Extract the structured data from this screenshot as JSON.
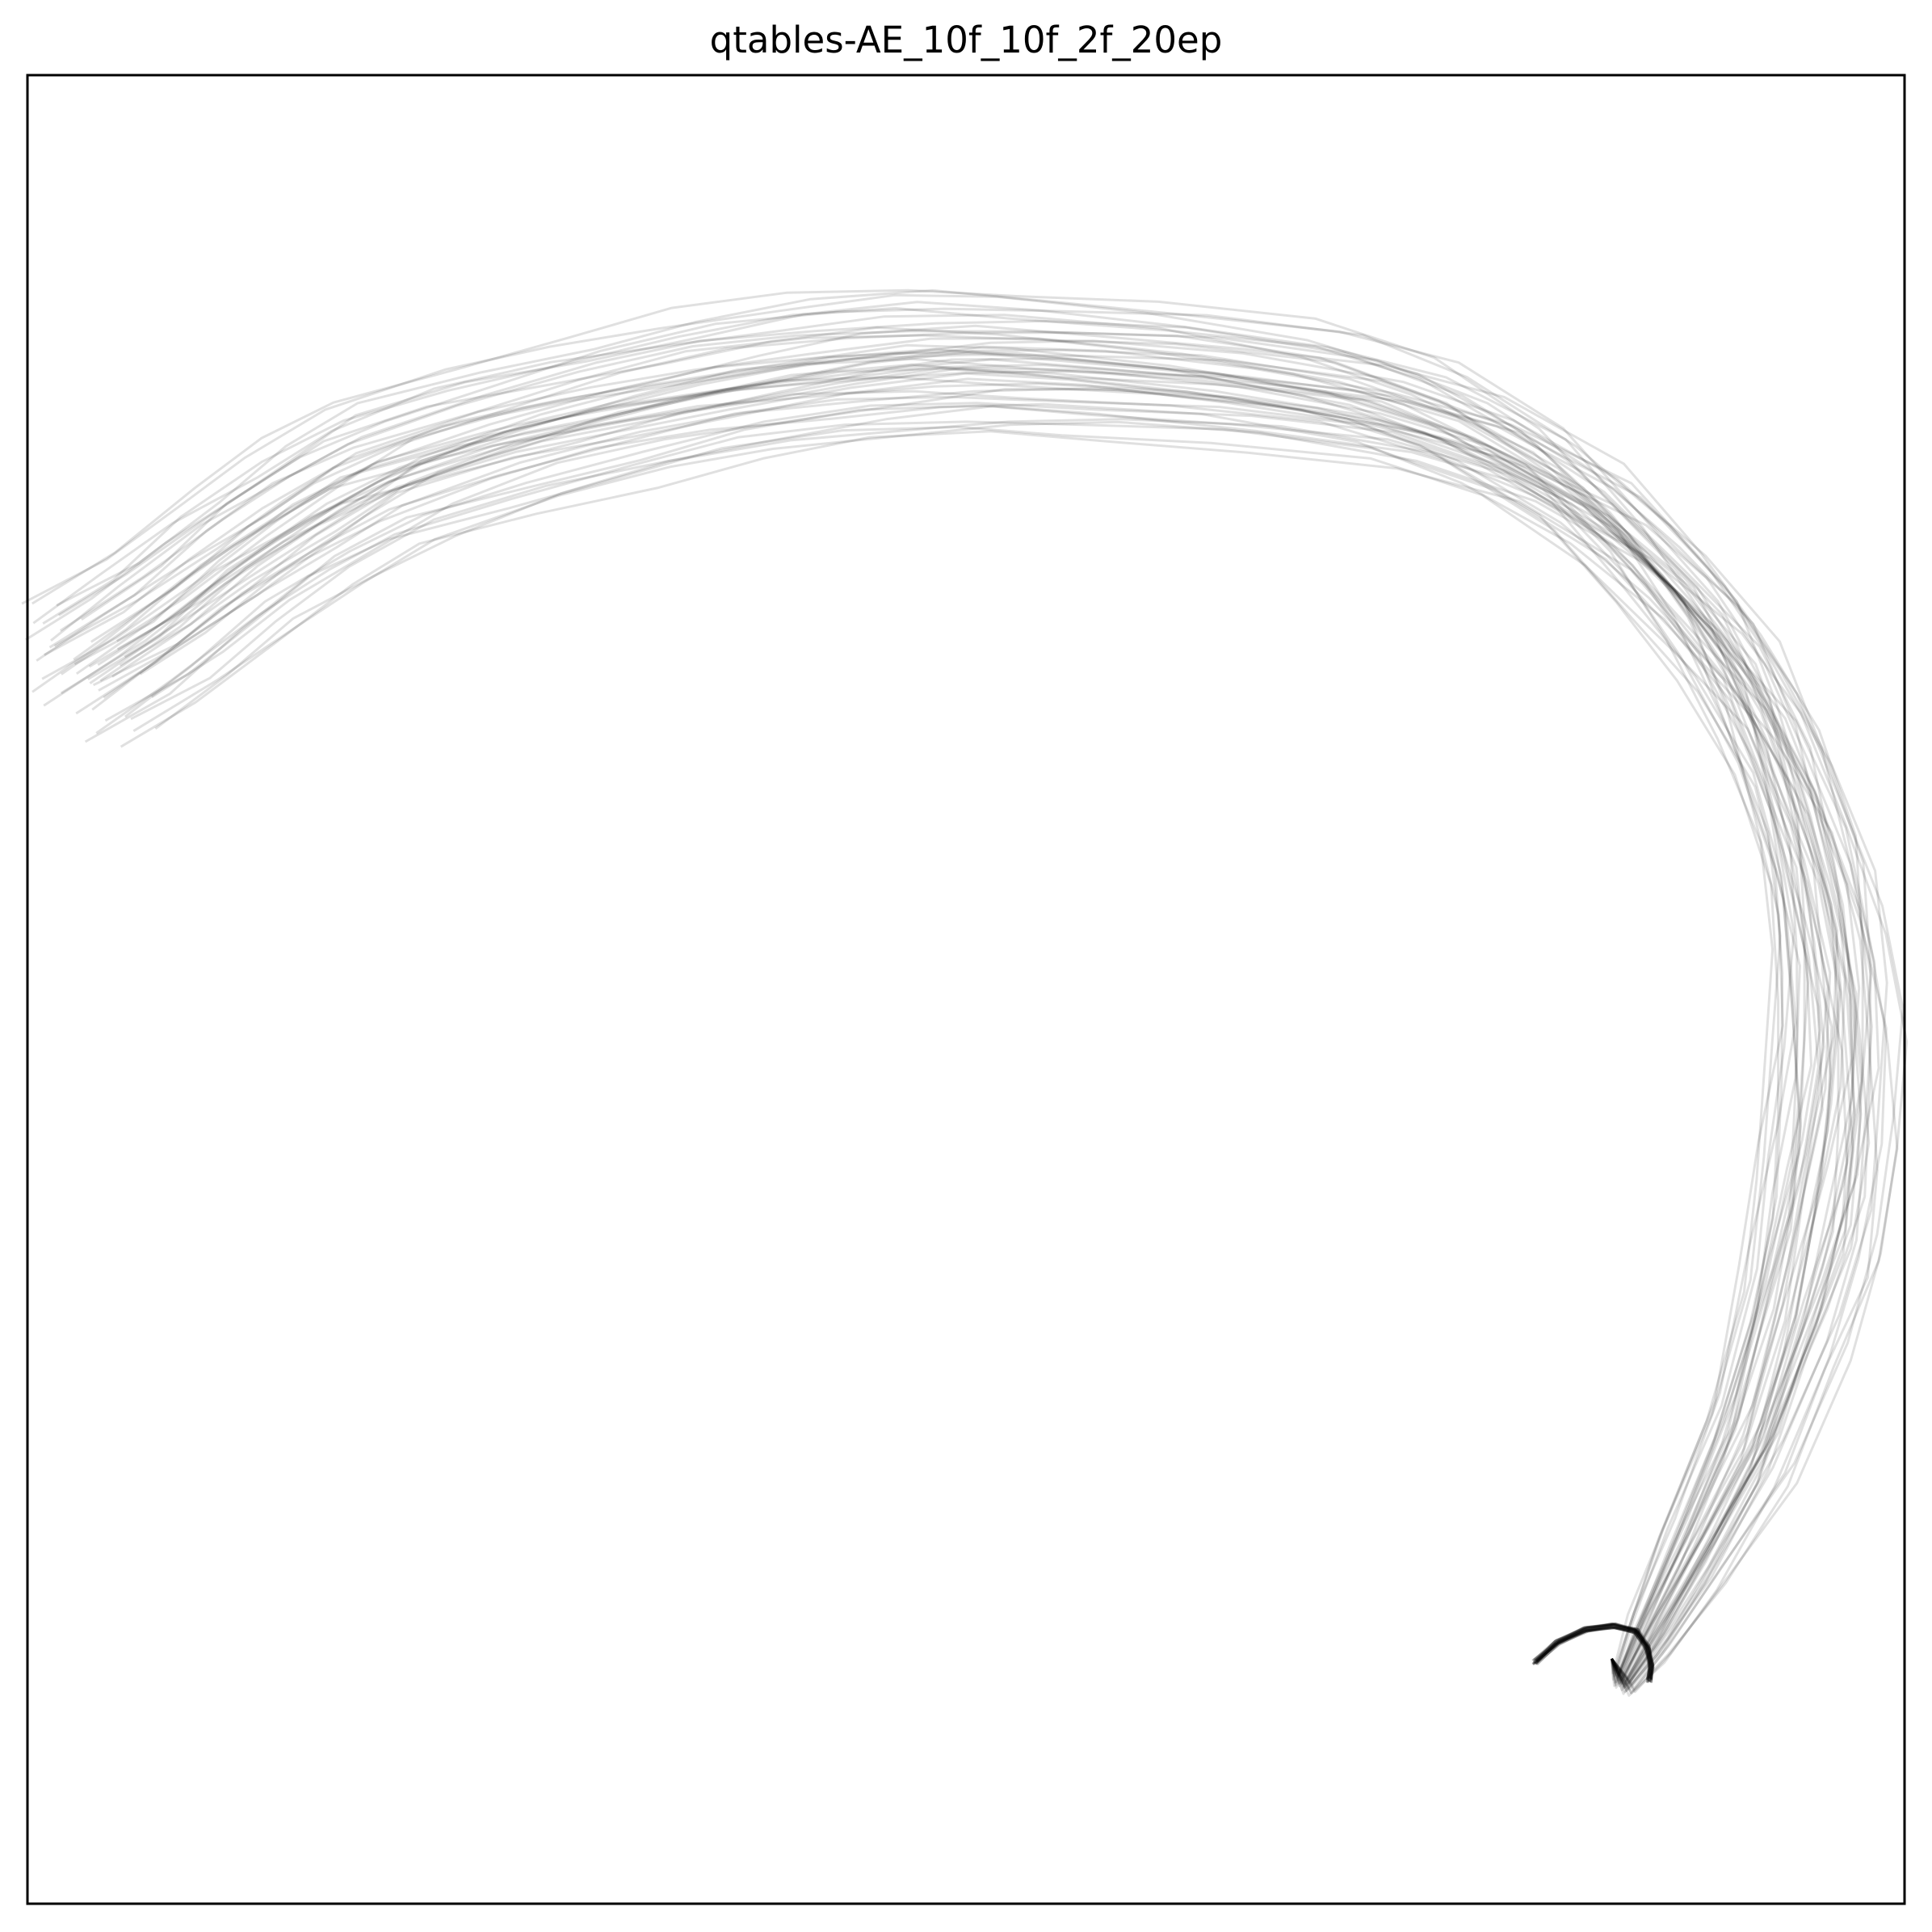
{
  "chart_data": {
    "type": "line",
    "title": "qtables-AE_10f_10f_2f_20ep",
    "xlabel": "",
    "ylabel": "",
    "axes_visible_ticks": false,
    "grid": false,
    "legend": "none",
    "xlim": [
      0,
      100
    ],
    "ylim": [
      0,
      100
    ],
    "line_color": "#000000",
    "line_alpha": 0.12,
    "trajectory_count": 48,
    "backbone": {
      "x": [
        84.4,
        85.0,
        86.4,
        88.8,
        91.8,
        94.0,
        95.5,
        96.3,
        96.3,
        95.4,
        93.6,
        91.0,
        87.5,
        83.0,
        77.0,
        71.0,
        63.0,
        55.0,
        49.0,
        43.0,
        37.0,
        31.0,
        25.0,
        19.0,
        15.0,
        11.0,
        7.0,
        3.0
      ],
      "y": [
        13.4,
        12.0,
        14.5,
        19.0,
        25.0,
        32.0,
        38.0,
        44.0,
        50.0,
        56.0,
        62.0,
        67.5,
        72.0,
        76.5,
        80.0,
        82.0,
        83.2,
        83.8,
        84.0,
        83.5,
        82.6,
        81.3,
        79.8,
        77.8,
        75.5,
        72.8,
        69.6,
        67.0
      ]
    },
    "hook": {
      "x": [
        80.3,
        81.5,
        83.0,
        84.5,
        85.7,
        86.3,
        86.5,
        86.4
      ],
      "y": [
        13.2,
        14.3,
        15.0,
        15.2,
        14.9,
        14.0,
        13.0,
        12.2
      ]
    },
    "series_offsets": [
      {
        "dx": 0.0,
        "dy": 0.0
      },
      {
        "dx": -0.6,
        "dy": 0.8
      },
      {
        "dx": 0.7,
        "dy": -0.6
      },
      {
        "dx": -1.2,
        "dy": 1.5
      },
      {
        "dx": 1.3,
        "dy": -1.1
      },
      {
        "dx": -1.8,
        "dy": 2.3
      },
      {
        "dx": 1.9,
        "dy": -1.8
      },
      {
        "dx": -2.5,
        "dy": 3.1
      },
      {
        "dx": 2.4,
        "dy": -2.4
      },
      {
        "dx": -3.1,
        "dy": 3.8
      },
      {
        "dx": 3.0,
        "dy": -3.0
      },
      {
        "dx": -0.3,
        "dy": 1.2
      },
      {
        "dx": 0.4,
        "dy": -1.4
      },
      {
        "dx": -1.5,
        "dy": 0.4
      },
      {
        "dx": 1.6,
        "dy": 0.6
      },
      {
        "dx": -2.2,
        "dy": 1.0
      },
      {
        "dx": 2.0,
        "dy": 1.4
      },
      {
        "dx": -0.9,
        "dy": 2.7
      },
      {
        "dx": 0.9,
        "dy": -2.7
      },
      {
        "dx": -2.8,
        "dy": -0.5
      },
      {
        "dx": 2.7,
        "dy": 0.2
      },
      {
        "dx": -0.1,
        "dy": -0.3
      },
      {
        "dx": 0.2,
        "dy": 0.4
      },
      {
        "dx": -1.0,
        "dy": -0.8
      },
      {
        "dx": 1.1,
        "dy": 1.0
      },
      {
        "dx": -1.9,
        "dy": -1.2
      },
      {
        "dx": 1.7,
        "dy": 2.1
      },
      {
        "dx": -3.4,
        "dy": 1.9
      },
      {
        "dx": 3.3,
        "dy": -1.3
      },
      {
        "dx": -0.5,
        "dy": -2.0
      },
      {
        "dx": 0.6,
        "dy": 2.2
      },
      {
        "dx": -2.4,
        "dy": 4.4
      },
      {
        "dx": 2.2,
        "dy": -3.6
      },
      {
        "dx": -1.4,
        "dy": 3.3
      },
      {
        "dx": 1.2,
        "dy": -0.2
      },
      {
        "dx": -0.7,
        "dy": 0.1
      },
      {
        "dx": 0.8,
        "dy": 0.0
      },
      {
        "dx": -1.6,
        "dy": 2.0
      },
      {
        "dx": 1.5,
        "dy": -2.1
      },
      {
        "dx": -2.0,
        "dy": -0.1
      },
      {
        "dx": 2.1,
        "dy": 0.9
      },
      {
        "dx": -3.0,
        "dy": 2.8
      },
      {
        "dx": 3.5,
        "dy": -2.7
      },
      {
        "dx": -0.2,
        "dy": 3.5
      },
      {
        "dx": 0.3,
        "dy": -3.2
      },
      {
        "dx": -1.1,
        "dy": 4.0
      },
      {
        "dx": 1.0,
        "dy": -0.9
      },
      {
        "dx": -2.6,
        "dy": 0.7
      }
    ]
  }
}
